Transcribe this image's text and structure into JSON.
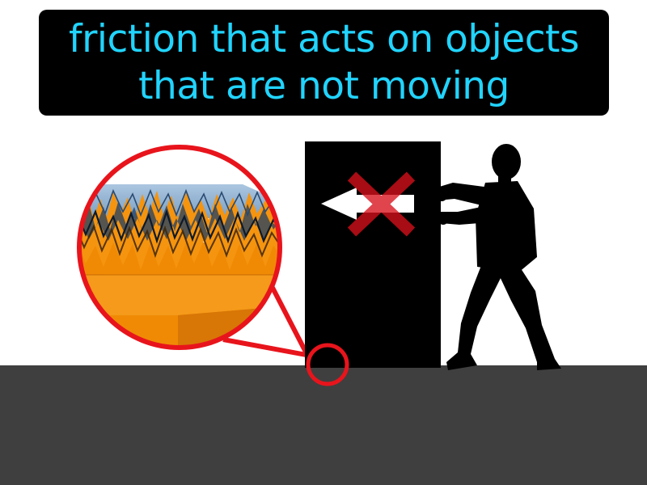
{
  "caption": {
    "line1": "friction that acts on objects",
    "line2": "that are not moving"
  },
  "colors": {
    "caption_background": "#000000",
    "caption_text": "#21d4ff",
    "floor": "#3f3f3f",
    "box": "#000000",
    "person_silhouette": "#000000",
    "highlight_red": "#e8141c",
    "surface_orange": "#f5940f",
    "surface_blue": "#3b6a9a",
    "arrow": "#ffffff"
  },
  "icons": {
    "motion_arrow": "arrow-left-icon",
    "blocked_mark": "x-cross-icon"
  }
}
